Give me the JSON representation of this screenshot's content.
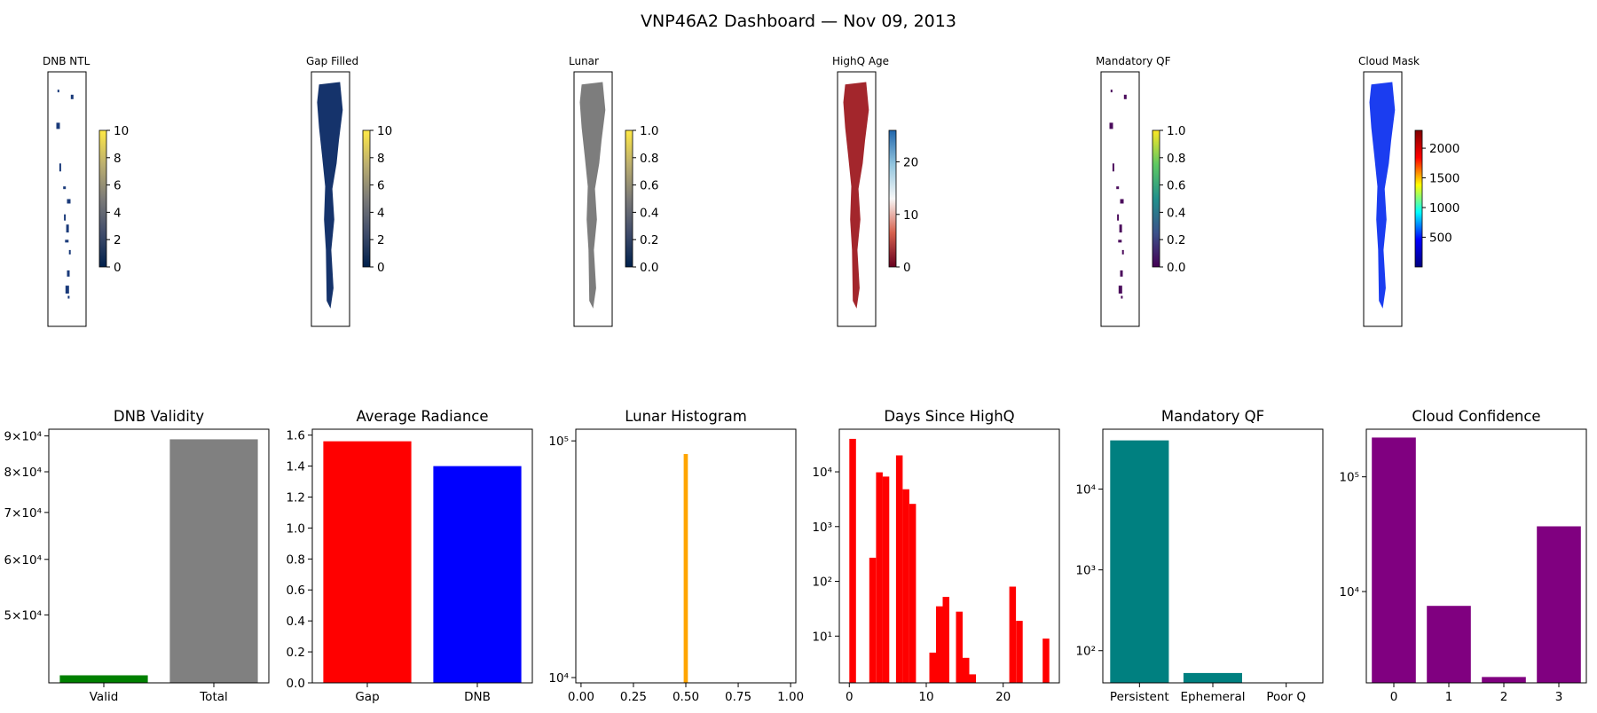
{
  "title": "VNP46A2 Dashboard — Nov 09, 2013",
  "chart_data": [
    {
      "type": "heatmap",
      "title": "DNB NTL",
      "colormap": "cividis",
      "colorbar": {
        "min": 0,
        "max": 10,
        "ticks": [
          0,
          2,
          4,
          6,
          8,
          10
        ],
        "colors": [
          "#00204c",
          "#414d6b",
          "#7c7b78",
          "#bcaf6f",
          "#ffe945"
        ]
      },
      "map_fill": "sparse",
      "map_color": "#1a3a7a"
    },
    {
      "type": "heatmap",
      "title": "Gap Filled",
      "colormap": "cividis",
      "colorbar": {
        "min": 0,
        "max": 10,
        "ticks": [
          0,
          2,
          4,
          6,
          8,
          10
        ],
        "colors": [
          "#00204c",
          "#414d6b",
          "#7c7b78",
          "#bcaf6f",
          "#ffe945"
        ]
      },
      "map_fill": "full",
      "map_color": "#15336b"
    },
    {
      "type": "heatmap",
      "title": "Lunar",
      "colormap": "cividis",
      "colorbar": {
        "min": 0,
        "max": 1,
        "ticks": [
          "0.0",
          "0.2",
          "0.4",
          "0.6",
          "0.8",
          "1.0"
        ],
        "colors": [
          "#00204c",
          "#414d6b",
          "#7c7b78",
          "#bcaf6f",
          "#ffe945"
        ]
      },
      "map_fill": "full",
      "map_color": "#7d7d7d"
    },
    {
      "type": "heatmap",
      "title": "HighQ Age",
      "colormap": "RdBu",
      "colorbar": {
        "min": 0,
        "max": 26,
        "ticks": [
          0,
          10,
          20
        ],
        "colors": [
          "#67001f",
          "#d6604d",
          "#f7f7f7",
          "#92c5de",
          "#2166ac"
        ]
      },
      "map_fill": "full",
      "map_color": "#a3262c"
    },
    {
      "type": "heatmap",
      "title": "Mandatory QF",
      "colormap": "viridis",
      "colorbar": {
        "min": 0,
        "max": 1,
        "ticks": [
          "0.0",
          "0.2",
          "0.4",
          "0.6",
          "0.8",
          "1.0"
        ],
        "colors": [
          "#440154",
          "#3b528b",
          "#21918c",
          "#5ec962",
          "#fde725"
        ]
      },
      "map_fill": "sparse",
      "map_color": "#4b0c5c"
    },
    {
      "type": "heatmap",
      "title": "Cloud Mask",
      "colormap": "jet",
      "colorbar": {
        "min": 0,
        "max": 2300,
        "ticks": [
          500,
          1000,
          1500,
          2000
        ],
        "colors": [
          "#00007f",
          "#0000ff",
          "#00ffff",
          "#ffff00",
          "#ff0000",
          "#7f0000"
        ]
      },
      "map_fill": "full",
      "map_color": "#1b3df0"
    },
    {
      "type": "bar",
      "title": "DNB Validity",
      "categories": [
        "Valid",
        "Total"
      ],
      "values": [
        41000,
        89000
      ],
      "colors": [
        "#008000",
        "#808080"
      ],
      "yscale": "log",
      "ylim": [
        40000,
        92000
      ],
      "yticks": [
        {
          "value": 50000,
          "label": "5×10⁴"
        },
        {
          "value": 60000,
          "label": "6×10⁴"
        },
        {
          "value": 70000,
          "label": "7×10⁴"
        },
        {
          "value": 80000,
          "label": "8×10⁴"
        },
        {
          "value": 90000,
          "label": "9×10⁴"
        }
      ]
    },
    {
      "type": "bar",
      "title": "Average Radiance",
      "categories": [
        "Gap",
        "DNB"
      ],
      "values": [
        1.56,
        1.4
      ],
      "colors": [
        "#ff0000",
        "#0000ff"
      ],
      "yscale": "linear",
      "ylim": [
        0,
        1.638
      ],
      "yticks": [
        {
          "value": 0,
          "label": "0.0"
        },
        {
          "value": 0.2,
          "label": "0.2"
        },
        {
          "value": 0.4,
          "label": "0.4"
        },
        {
          "value": 0.6,
          "label": "0.6"
        },
        {
          "value": 0.8,
          "label": "0.8"
        },
        {
          "value": 1.0,
          "label": "1.0"
        },
        {
          "value": 1.2,
          "label": "1.2"
        },
        {
          "value": 1.4,
          "label": "1.4"
        },
        {
          "value": 1.6,
          "label": "1.6"
        }
      ]
    },
    {
      "type": "histogram",
      "title": "Lunar Histogram",
      "bins": [
        {
          "x0": 0.49,
          "x1": 0.51,
          "count": 88000
        }
      ],
      "color": "#ffa500",
      "xscale": "linear",
      "xlim": [
        -0.025,
        1.025
      ],
      "xticks": [
        {
          "value": 0,
          "label": "0.00"
        },
        {
          "value": 0.25,
          "label": "0.25"
        },
        {
          "value": 0.5,
          "label": "0.50"
        },
        {
          "value": 0.75,
          "label": "0.75"
        },
        {
          "value": 1.0,
          "label": "1.00"
        }
      ],
      "yscale": "log",
      "ylim": [
        9500,
        112000
      ],
      "yticks": [
        {
          "value": 10000,
          "label": "10⁴"
        },
        {
          "value": 100000,
          "label": "10⁵"
        }
      ]
    },
    {
      "type": "histogram",
      "title": "Days Since HighQ",
      "bins": [
        {
          "x0": 0,
          "x1": 0.87,
          "count": 40000
        },
        {
          "x0": 2.6,
          "x1": 3.47,
          "count": 270
        },
        {
          "x0": 3.47,
          "x1": 4.33,
          "count": 9800
        },
        {
          "x0": 4.33,
          "x1": 5.2,
          "count": 8200
        },
        {
          "x0": 6.07,
          "x1": 6.93,
          "count": 20000
        },
        {
          "x0": 6.93,
          "x1": 7.8,
          "count": 4800
        },
        {
          "x0": 7.8,
          "x1": 8.67,
          "count": 2600
        },
        {
          "x0": 10.4,
          "x1": 11.27,
          "count": 5
        },
        {
          "x0": 11.27,
          "x1": 12.13,
          "count": 35
        },
        {
          "x0": 12.13,
          "x1": 13.0,
          "count": 52
        },
        {
          "x0": 13.87,
          "x1": 14.73,
          "count": 28
        },
        {
          "x0": 14.73,
          "x1": 15.6,
          "count": 4
        },
        {
          "x0": 15.6,
          "x1": 16.47,
          "count": 2
        },
        {
          "x0": 20.8,
          "x1": 21.67,
          "count": 80
        },
        {
          "x0": 21.67,
          "x1": 22.53,
          "count": 19
        },
        {
          "x0": 25.13,
          "x1": 26.0,
          "count": 9
        }
      ],
      "color": "#ff0000",
      "xscale": "linear",
      "xlim": [
        -1.3,
        27.3
      ],
      "xticks": [
        {
          "value": 0,
          "label": "0"
        },
        {
          "value": 10,
          "label": "10"
        },
        {
          "value": 20,
          "label": "20"
        }
      ],
      "yscale": "log",
      "ylim": [
        1.4,
        60000
      ],
      "yticks": [
        {
          "value": 10,
          "label": "10¹"
        },
        {
          "value": 100,
          "label": "10²"
        },
        {
          "value": 1000,
          "label": "10³"
        },
        {
          "value": 10000,
          "label": "10⁴"
        }
      ]
    },
    {
      "type": "bar",
      "title": "Mandatory QF",
      "categories": [
        "Persistent",
        "Ephemeral",
        "Poor Q"
      ],
      "values": [
        40000,
        53,
        0
      ],
      "colors": [
        "#008080",
        "#008080",
        "#008080"
      ],
      "yscale": "log",
      "ylim": [
        40,
        55000
      ],
      "yticks": [
        {
          "value": 100,
          "label": "10²"
        },
        {
          "value": 1000,
          "label": "10³"
        },
        {
          "value": 10000,
          "label": "10⁴"
        }
      ]
    },
    {
      "type": "bar",
      "title": "Cloud Confidence",
      "categories": [
        "0",
        "1",
        "2",
        "3"
      ],
      "values": [
        220000,
        7500,
        1800,
        37000
      ],
      "colors": [
        "#800080",
        "#800080",
        "#800080",
        "#800080"
      ],
      "yscale": "log",
      "ylim": [
        1600,
        260000
      ],
      "yticks": [
        {
          "value": 10000,
          "label": "10⁴"
        },
        {
          "value": 100000,
          "label": "10⁵"
        }
      ]
    }
  ]
}
